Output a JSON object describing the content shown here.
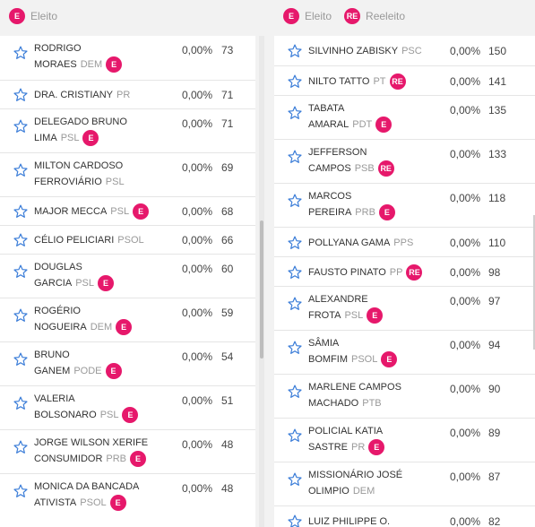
{
  "legend_left": {
    "e_badge": "E",
    "e_label": "Eleito"
  },
  "legend_right": {
    "e_badge": "E",
    "e_label": "Eleito",
    "re_badge": "RE",
    "re_label": "Reeleito"
  },
  "colors": {
    "accent": "#e6186b",
    "star": "#3b7dd8"
  },
  "left_candidates": [
    {
      "line1": "RODRIGO",
      "line2": "MORAES",
      "party": "DEM",
      "badge": "E",
      "pct": "0,00%",
      "votes": "73"
    },
    {
      "line1": "DRA. CRISTIANY",
      "line2": "",
      "party": "PR",
      "badge": "",
      "pct": "0,00%",
      "votes": "71"
    },
    {
      "line1": "DELEGADO BRUNO",
      "line2": "LIMA",
      "party": "PSL",
      "badge": "E",
      "pct": "0,00%",
      "votes": "71"
    },
    {
      "line1": "MILTON CARDOSO",
      "line2": "FERROVIÁRIO",
      "party": "PSL",
      "badge": "",
      "pct": "0,00%",
      "votes": "69"
    },
    {
      "line1": "MAJOR MECCA",
      "line2": "",
      "party": "PSL",
      "badge": "E",
      "pct": "0,00%",
      "votes": "68"
    },
    {
      "line1": "CÉLIO PELICIARI",
      "line2": "",
      "party": "PSOL",
      "badge": "",
      "pct": "0,00%",
      "votes": "66"
    },
    {
      "line1": "DOUGLAS",
      "line2": "GARCIA",
      "party": "PSL",
      "badge": "E",
      "pct": "0,00%",
      "votes": "60"
    },
    {
      "line1": "ROGÉRIO",
      "line2": "NOGUEIRA",
      "party": "DEM",
      "badge": "E",
      "pct": "0,00%",
      "votes": "59"
    },
    {
      "line1": "BRUNO",
      "line2": "GANEM",
      "party": "PODE",
      "badge": "E",
      "pct": "0,00%",
      "votes": "54"
    },
    {
      "line1": "VALERIA",
      "line2": "BOLSONARO",
      "party": "PSL",
      "badge": "E",
      "pct": "0,00%",
      "votes": "51"
    },
    {
      "line1": "JORGE WILSON XERIFE",
      "line2": "CONSUMIDOR",
      "party": "PRB",
      "badge": "E",
      "pct": "0,00%",
      "votes": "48"
    },
    {
      "line1": "MONICA DA BANCADA",
      "line2": "ATIVISTA",
      "party": "PSOL",
      "badge": "E",
      "pct": "0,00%",
      "votes": "48"
    }
  ],
  "right_candidates": [
    {
      "line1": "SILVINHO ZABISKY",
      "line2": "",
      "party": "PSC",
      "badge": "",
      "pct": "0,00%",
      "votes": "150"
    },
    {
      "line1": "NILTO TATTO",
      "line2": "",
      "party": "PT",
      "badge": "RE",
      "pct": "0,00%",
      "votes": "141"
    },
    {
      "line1": "TABATA",
      "line2": "AMARAL",
      "party": "PDT",
      "badge": "E",
      "pct": "0,00%",
      "votes": "135"
    },
    {
      "line1": "JEFFERSON",
      "line2": "CAMPOS",
      "party": "PSB",
      "badge": "RE",
      "pct": "0,00%",
      "votes": "133"
    },
    {
      "line1": "MARCOS",
      "line2": "PEREIRA",
      "party": "PRB",
      "badge": "E",
      "pct": "0,00%",
      "votes": "118"
    },
    {
      "line1": "POLLYANA GAMA",
      "line2": "",
      "party": "PPS",
      "badge": "",
      "pct": "0,00%",
      "votes": "110"
    },
    {
      "line1": "FAUSTO PINATO",
      "line2": "",
      "party": "PP",
      "badge": "RE",
      "pct": "0,00%",
      "votes": "98"
    },
    {
      "line1": "ALEXANDRE",
      "line2": "FROTA",
      "party": "PSL",
      "badge": "E",
      "pct": "0,00%",
      "votes": "97"
    },
    {
      "line1": "SÂMIA",
      "line2": "BOMFIM",
      "party": "PSOL",
      "badge": "E",
      "pct": "0,00%",
      "votes": "94"
    },
    {
      "line1": "MARLENE CAMPOS",
      "line2": "MACHADO",
      "party": "PTB",
      "badge": "",
      "pct": "0,00%",
      "votes": "90"
    },
    {
      "line1": "POLICIAL KATIA",
      "line2": "SASTRE",
      "party": "PR",
      "badge": "E",
      "pct": "0,00%",
      "votes": "89"
    },
    {
      "line1": "MISSIONÁRIO JOSÉ",
      "line2": "OLIMPIO",
      "party": "DEM",
      "badge": "",
      "pct": "0,00%",
      "votes": "87"
    },
    {
      "line1": "LUIZ PHILIPPE O.",
      "line2": "",
      "party": "",
      "badge": "",
      "pct": "0,00%",
      "votes": "82"
    }
  ]
}
